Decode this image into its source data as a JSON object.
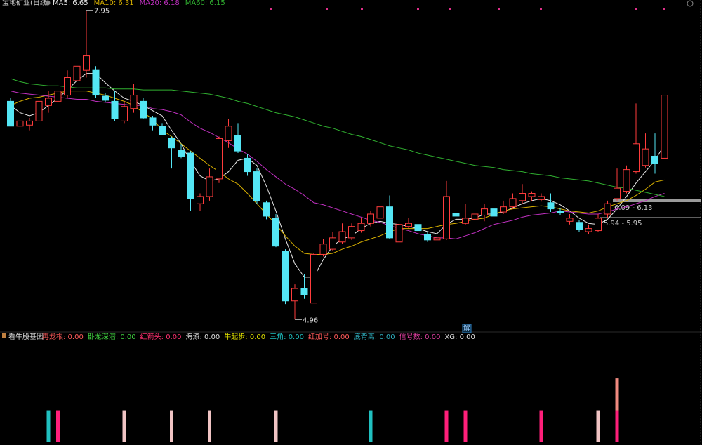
{
  "chart_data": [
    {
      "type": "candlestick",
      "title": "宝地矿业(日线)",
      "ylim": [
        4.86,
        8.05
      ],
      "open": [
        7.07,
        6.83,
        6.84,
        6.88,
        7.03,
        7.07,
        7.13,
        7.27,
        7.37,
        7.37,
        7.12,
        7.07,
        6.88,
        7.0,
        7.07,
        6.91,
        6.83,
        6.71,
        6.6,
        6.57,
        6.08,
        6.15,
        6.32,
        6.69,
        6.74,
        6.52,
        6.39,
        6.09,
        5.94,
        5.62,
        5.14,
        5.26,
        5.12,
        5.59,
        5.64,
        5.71,
        5.75,
        5.82,
        5.89,
        5.94,
        6.05,
        5.71,
        5.86,
        5.88,
        5.78,
        5.73,
        5.74,
        5.99,
        5.89,
        5.93,
        5.97,
        6.03,
        6.0,
        6.05,
        6.11,
        6.15,
        6.12,
        6.09,
        6.01,
        5.91,
        5.9,
        5.81,
        5.82,
        5.98,
        6.13,
        6.2,
        6.39,
        6.45,
        6.54,
        6.52
      ],
      "high": [
        7.1,
        6.93,
        6.91,
        7.1,
        7.17,
        7.2,
        7.37,
        7.47,
        7.95,
        7.41,
        7.15,
        7.17,
        7.07,
        7.24,
        7.1,
        6.93,
        6.86,
        6.73,
        6.66,
        6.59,
        6.18,
        6.42,
        6.73,
        6.9,
        6.86,
        6.56,
        6.42,
        6.11,
        5.98,
        5.64,
        5.3,
        5.4,
        5.6,
        5.74,
        5.81,
        5.89,
        5.89,
        5.94,
        6.01,
        6.15,
        6.16,
        5.98,
        5.94,
        5.91,
        5.81,
        5.84,
        6.3,
        6.11,
        6.08,
        6.01,
        6.08,
        6.11,
        6.11,
        6.18,
        6.27,
        6.2,
        6.18,
        6.18,
        6.04,
        5.98,
        5.92,
        5.88,
        5.98,
        6.11,
        6.42,
        6.45,
        7.05,
        6.76,
        6.76,
        7.13
      ],
      "low": [
        6.83,
        6.79,
        6.79,
        6.86,
        6.96,
        7.03,
        7.1,
        7.24,
        7.3,
        7.1,
        7.06,
        6.88,
        6.86,
        6.96,
        6.9,
        6.79,
        6.74,
        6.42,
        6.52,
        6.01,
        6.01,
        6.11,
        6.28,
        6.62,
        6.57,
        6.35,
        6.08,
        5.93,
        5.66,
        5.11,
        4.96,
        5.16,
        5.12,
        5.57,
        5.62,
        5.69,
        5.73,
        5.8,
        5.86,
        5.77,
        5.74,
        5.69,
        5.84,
        5.81,
        5.71,
        5.71,
        5.73,
        5.84,
        5.88,
        5.88,
        5.91,
        5.93,
        5.98,
        6.03,
        6.08,
        6.11,
        6.1,
        6.0,
        5.97,
        5.88,
        5.81,
        5.79,
        5.81,
        5.94,
        6.11,
        6.18,
        6.37,
        6.43,
        6.37,
        6.52
      ],
      "close": [
        6.83,
        6.88,
        6.88,
        7.07,
        7.1,
        7.17,
        7.3,
        7.41,
        7.51,
        7.13,
        7.08,
        6.9,
        7.02,
        7.13,
        6.91,
        6.84,
        6.75,
        6.62,
        6.54,
        6.13,
        6.15,
        6.34,
        6.71,
        6.83,
        6.59,
        6.39,
        6.11,
        5.96,
        5.67,
        5.14,
        5.26,
        5.2,
        5.59,
        5.69,
        5.75,
        5.81,
        5.86,
        5.89,
        5.98,
        6.05,
        5.75,
        5.88,
        5.89,
        5.82,
        5.73,
        5.75,
        6.15,
        5.96,
        5.94,
        5.98,
        6.03,
        5.96,
        6.05,
        6.13,
        6.18,
        6.18,
        6.15,
        6.03,
        5.99,
        5.94,
        5.83,
        5.84,
        5.94,
        6.08,
        6.23,
        6.41,
        6.66,
        6.61,
        6.47,
        7.13
      ],
      "up_color": "#ff3c3c",
      "down_color": "#54e6f5",
      "series": [
        {
          "name": "MA5: 6.65",
          "color": "#e8e8e8",
          "values": [
            7.03,
            6.96,
            6.93,
            6.96,
            7.03,
            7.1,
            7.18,
            7.27,
            7.34,
            7.34,
            7.25,
            7.17,
            7.1,
            7.07,
            7.03,
            6.98,
            6.93,
            6.79,
            6.66,
            6.49,
            6.35,
            6.3,
            6.32,
            6.39,
            6.5,
            6.52,
            6.45,
            6.25,
            6.01,
            5.74,
            5.5,
            5.37,
            5.37,
            5.54,
            5.67,
            5.74,
            5.77,
            5.84,
            5.89,
            5.91,
            5.89,
            5.88,
            5.86,
            5.84,
            5.81,
            5.79,
            5.88,
            5.93,
            5.93,
            5.94,
            5.98,
            5.98,
            6.0,
            6.04,
            6.08,
            6.11,
            6.13,
            6.11,
            6.07,
            6.01,
            5.94,
            5.89,
            5.88,
            5.93,
            6.03,
            6.15,
            6.28,
            6.39,
            6.5,
            6.65
          ]
        },
        {
          "name": "MA10: 6.31",
          "color": "#d8b000",
          "values": [
            7.03,
            7.07,
            7.1,
            7.11,
            7.13,
            7.15,
            7.17,
            7.17,
            7.17,
            7.15,
            7.13,
            7.1,
            7.07,
            7.03,
            6.96,
            6.9,
            6.79,
            6.73,
            6.66,
            6.59,
            6.52,
            6.45,
            6.39,
            6.32,
            6.27,
            6.18,
            6.08,
            5.98,
            5.88,
            5.77,
            5.67,
            5.6,
            5.59,
            5.59,
            5.6,
            5.64,
            5.67,
            5.71,
            5.74,
            5.77,
            5.81,
            5.84,
            5.84,
            5.84,
            5.84,
            5.86,
            5.88,
            5.89,
            5.91,
            5.93,
            5.94,
            5.98,
            6.01,
            6.03,
            6.04,
            6.05,
            6.06,
            6.05,
            6.03,
            6.01,
            6.0,
            5.99,
            6.01,
            6.05,
            6.08,
            6.11,
            6.16,
            6.22,
            6.29,
            6.31
          ]
        },
        {
          "name": "MA20: 6.18",
          "color": "#c030c0",
          "values": [
            7.17,
            7.15,
            7.14,
            7.13,
            7.12,
            7.11,
            7.1,
            7.09,
            7.09,
            7.07,
            7.06,
            7.05,
            7.04,
            7.03,
            7.03,
            7.0,
            6.99,
            6.97,
            6.94,
            6.87,
            6.81,
            6.77,
            6.72,
            6.67,
            6.61,
            6.56,
            6.49,
            6.41,
            6.34,
            6.27,
            6.22,
            6.16,
            6.09,
            6.07,
            6.04,
            6.01,
            5.98,
            5.95,
            5.92,
            5.9,
            5.87,
            5.84,
            5.82,
            5.79,
            5.77,
            5.75,
            5.75,
            5.74,
            5.77,
            5.8,
            5.84,
            5.88,
            5.9,
            5.92,
            5.95,
            5.97,
            5.98,
            5.99,
            6.01,
            6.0,
            5.99,
            5.98,
            5.98,
            6.0,
            6.03,
            6.05,
            6.08,
            6.11,
            6.15,
            6.18
          ]
        },
        {
          "name": "MA60: 6.15",
          "color": "#30b030",
          "values": [
            7.29,
            7.26,
            7.24,
            7.23,
            7.22,
            7.22,
            7.21,
            7.2,
            7.2,
            7.2,
            7.2,
            7.19,
            7.19,
            7.19,
            7.18,
            7.18,
            7.18,
            7.18,
            7.17,
            7.16,
            7.15,
            7.14,
            7.12,
            7.1,
            7.07,
            7.05,
            7.02,
            6.99,
            6.96,
            6.94,
            6.92,
            6.89,
            6.86,
            6.83,
            6.81,
            6.78,
            6.75,
            6.73,
            6.7,
            6.67,
            6.64,
            6.62,
            6.6,
            6.57,
            6.55,
            6.53,
            6.51,
            6.49,
            6.47,
            6.45,
            6.44,
            6.43,
            6.41,
            6.4,
            6.39,
            6.37,
            6.36,
            6.35,
            6.33,
            6.32,
            6.31,
            6.3,
            6.28,
            6.26,
            6.24,
            6.23,
            6.21,
            6.19,
            6.17,
            6.15
          ]
        }
      ],
      "annotations": [
        "6.09 - 6.13",
        "5.94 - 5.95"
      ],
      "badge": "解"
    },
    {
      "type": "bar",
      "title": "看牛股基因",
      "ylim": [
        0,
        2.2
      ],
      "indicators": [
        {
          "label": "再龙根: 0.00",
          "color": "#ff5a5a"
        },
        {
          "label": "卧龙深潜: 0.00",
          "color": "#40d040"
        },
        {
          "label": "红箭头: 0.00",
          "color": "#ff3070"
        },
        {
          "label": "海漆: 0.00",
          "color": "#e0e0e0"
        },
        {
          "label": "牛起步: 0.00",
          "color": "#e0e000"
        },
        {
          "label": "三角: 0.00",
          "color": "#20c0c0"
        },
        {
          "label": "红加号: 0.00",
          "color": "#ff5a5a"
        },
        {
          "label": "底背离: 0.00",
          "color": "#30b0c0"
        },
        {
          "label": "信号数: 0.00",
          "color": "#e040a0"
        },
        {
          "label": "XG: 0.00",
          "color": "#e0e0e0"
        }
      ],
      "series": [
        {
          "color": "#20c0c0",
          "values": [
            null,
            null,
            null,
            null,
            1,
            null,
            null,
            null,
            null,
            null,
            null,
            null,
            null,
            null,
            null,
            null,
            null,
            null,
            null,
            null,
            null,
            null,
            null,
            null,
            null,
            null,
            null,
            null,
            null,
            null,
            null,
            null,
            null,
            null,
            null,
            null,
            null,
            null,
            1,
            null,
            null,
            null,
            null,
            null,
            null,
            null,
            null,
            null,
            null,
            null,
            null,
            null,
            null,
            null,
            null,
            null,
            null,
            null,
            null,
            null,
            null,
            null,
            null,
            null,
            null,
            null,
            null,
            null,
            null,
            null
          ]
        },
        {
          "color": "#ff1f7a",
          "values": [
            null,
            null,
            null,
            null,
            null,
            1,
            null,
            null,
            null,
            null,
            null,
            null,
            null,
            null,
            null,
            null,
            null,
            null,
            null,
            null,
            null,
            null,
            null,
            null,
            null,
            null,
            null,
            null,
            null,
            null,
            null,
            null,
            null,
            null,
            null,
            null,
            null,
            null,
            null,
            null,
            null,
            null,
            null,
            null,
            null,
            null,
            1,
            null,
            1,
            null,
            null,
            null,
            null,
            null,
            null,
            null,
            1,
            null,
            null,
            null,
            null,
            null,
            null,
            null,
            1,
            null,
            null,
            null,
            null,
            null
          ]
        },
        {
          "color": "#f0c4c4",
          "values": [
            null,
            null,
            null,
            null,
            null,
            null,
            null,
            null,
            null,
            null,
            null,
            null,
            1,
            null,
            null,
            null,
            null,
            1,
            null,
            null,
            null,
            1,
            null,
            null,
            null,
            null,
            null,
            null,
            1,
            null,
            null,
            null,
            null,
            null,
            null,
            null,
            null,
            null,
            null,
            null,
            null,
            null,
            null,
            null,
            null,
            null,
            null,
            null,
            null,
            null,
            null,
            null,
            null,
            null,
            null,
            null,
            null,
            null,
            null,
            null,
            null,
            null,
            1,
            null,
            null,
            null,
            null,
            null,
            null,
            null
          ]
        },
        {
          "color": "#f08a80",
          "values": [
            null,
            null,
            null,
            null,
            null,
            null,
            null,
            null,
            null,
            null,
            null,
            null,
            null,
            null,
            null,
            null,
            null,
            null,
            null,
            null,
            null,
            null,
            null,
            null,
            null,
            null,
            null,
            null,
            null,
            null,
            null,
            null,
            null,
            null,
            null,
            null,
            null,
            null,
            null,
            null,
            null,
            null,
            null,
            null,
            null,
            null,
            null,
            null,
            null,
            null,
            null,
            null,
            null,
            null,
            null,
            null,
            null,
            null,
            null,
            null,
            null,
            null,
            null,
            null,
            1,
            null,
            null,
            null,
            null,
            null
          ]
        }
      ]
    }
  ]
}
